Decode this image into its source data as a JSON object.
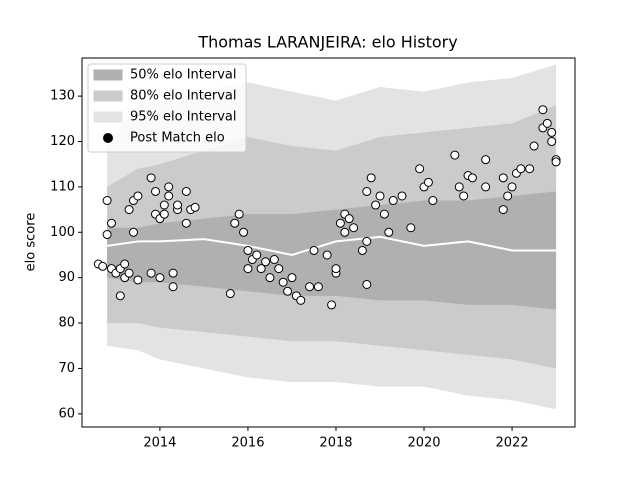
{
  "chart_data": {
    "type": "band-scatter",
    "title": "Thomas LARANJEIRA: elo History",
    "y_label": "elo score",
    "xlim": [
      2012.23,
      2023.43
    ],
    "ylim": [
      57.1,
      138.4
    ],
    "xticks": [
      2014,
      2016,
      2018,
      2020,
      2022
    ],
    "yticks": [
      60,
      70,
      80,
      90,
      100,
      110,
      120,
      130
    ],
    "legend_position": "upper left",
    "x": [
      2012.8,
      2013.5,
      2014,
      2015,
      2016,
      2017,
      2018,
      2019,
      2020,
      2021,
      2022,
      2023
    ],
    "bands": [
      {
        "name": "95% elo Interval",
        "color": "#e3e3e3",
        "upper": [
          120,
          128,
          129,
          131,
          133,
          131,
          129,
          132,
          131,
          133,
          134,
          137
        ],
        "lower": [
          75,
          74,
          72,
          70,
          68,
          67,
          67,
          66,
          66,
          64,
          63,
          61
        ]
      },
      {
        "name": "80% elo Interval",
        "color": "#cbcbcb",
        "upper": [
          110,
          114,
          115,
          118,
          121,
          119,
          118,
          121,
          122,
          123,
          124,
          128
        ],
        "lower": [
          80,
          80,
          79,
          78,
          77,
          76,
          76,
          75,
          74,
          73,
          72,
          70
        ]
      },
      {
        "name": "50% elo Interval",
        "color": "#b0b0b0",
        "upper": [
          101,
          101,
          102,
          103,
          104,
          104,
          105,
          106,
          107,
          107,
          108,
          109
        ],
        "lower": [
          90,
          89,
          89,
          88,
          87,
          86,
          86,
          85,
          85,
          84,
          84,
          83
        ]
      }
    ],
    "line": {
      "color": "#ffffff",
      "values": [
        97,
        98,
        98,
        98.5,
        97,
        95,
        98,
        99,
        97,
        98,
        96,
        96
      ]
    },
    "points": {
      "name": "Post Match elo",
      "color": "#ffffff",
      "edge_color": "#000000",
      "x": [
        2012.6,
        2012.7,
        2012.8,
        2012.8,
        2012.9,
        2012.9,
        2013.0,
        2013.1,
        2013.1,
        2013.2,
        2013.2,
        2013.3,
        2013.3,
        2013.4,
        2013.4,
        2013.5,
        2013.5,
        2013.8,
        2013.8,
        2013.9,
        2013.9,
        2014.0,
        2014.0,
        2014.1,
        2014.1,
        2014.2,
        2014.2,
        2014.3,
        2014.3,
        2014.4,
        2014.4,
        2014.6,
        2014.6,
        2014.7,
        2014.8,
        2015.6,
        2015.7,
        2015.8,
        2015.9,
        2016.0,
        2016.0,
        2016.1,
        2016.2,
        2016.3,
        2016.4,
        2016.5,
        2016.6,
        2016.7,
        2016.8,
        2016.9,
        2017.0,
        2017.1,
        2017.2,
        2017.4,
        2017.5,
        2017.6,
        2017.8,
        2017.9,
        2018.0,
        2018.0,
        2018.1,
        2018.2,
        2018.2,
        2018.3,
        2018.4,
        2018.6,
        2018.7,
        2018.7,
        2018.7,
        2018.8,
        2018.9,
        2019.0,
        2019.1,
        2019.2,
        2019.3,
        2019.5,
        2019.7,
        2019.9,
        2020.0,
        2020.1,
        2020.2,
        2020.7,
        2020.8,
        2020.9,
        2021.0,
        2021.1,
        2021.4,
        2021.4,
        2021.8,
        2021.8,
        2021.9,
        2022.0,
        2022.1,
        2022.2,
        2022.4,
        2022.5,
        2022.7,
        2022.7,
        2022.8,
        2022.9,
        2022.9,
        2023.0,
        2023.0
      ],
      "y": [
        93,
        92.5,
        107,
        99.5,
        102,
        92,
        91,
        92,
        86,
        93,
        90,
        91,
        105,
        100,
        107,
        108,
        89.5,
        112,
        91,
        104,
        109,
        103,
        90,
        106,
        104,
        108,
        110,
        91,
        88,
        105,
        106,
        102,
        109,
        105,
        105.5,
        86.5,
        102,
        104,
        100,
        92,
        96,
        94,
        95,
        92,
        93.5,
        90,
        94,
        92,
        89,
        87,
        90,
        86,
        85,
        88,
        96,
        88,
        95,
        84,
        91,
        92,
        102,
        104,
        100,
        103,
        101,
        96,
        88.5,
        98,
        109,
        112,
        106,
        108,
        104,
        100,
        107,
        108,
        101,
        114,
        110,
        111,
        107,
        117,
        110,
        108,
        112.5,
        112,
        116,
        110,
        112,
        105,
        108,
        110,
        113,
        114,
        114,
        119,
        127,
        123,
        124,
        122,
        120,
        116,
        115.5
      ]
    }
  }
}
